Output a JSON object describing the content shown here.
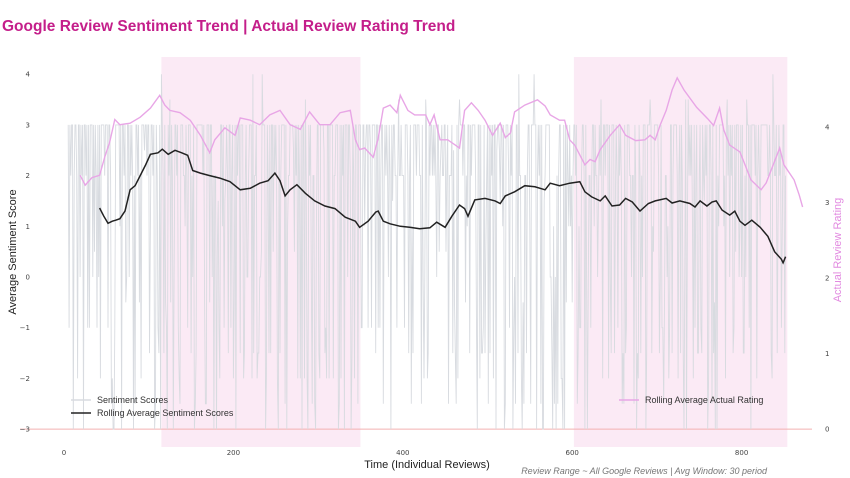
{
  "chart_data": {
    "type": "line",
    "title": "Google Review Sentiment Trend | Actual Review Rating Trend",
    "xlabel": "Time (Individual Reviews)",
    "ylabel": "Average Sentiment Score",
    "ylabel_right": "Actual Review Rating",
    "footnote": "Review Range ~ All Google Reviews | Avg Window: 30 period",
    "xlim": [
      -10,
      854
    ],
    "ylim": [
      -3,
      4
    ],
    "ylim_right": [
      0,
      4
    ],
    "x_ticks": [
      0,
      200,
      400,
      600,
      800
    ],
    "y_ticks": [
      -3,
      -2,
      -1,
      0,
      1,
      2,
      3,
      4
    ],
    "y_ticks_right": [
      0,
      1,
      2,
      3,
      4
    ],
    "grid": false,
    "colors": {
      "title": "#c41e8a",
      "sentiment_raw": "#d8dbe0",
      "rolling_sentiment": "#222222",
      "rolling_rating": "#e8a6e6",
      "shade": "#fbeaf5",
      "baseline": "#f3b0b0"
    },
    "shaded_ranges": [
      [
        115,
        350
      ],
      [
        602,
        854
      ]
    ],
    "baseline_value": -3,
    "legend": {
      "left": {
        "placement": "bottom-left",
        "entries": [
          "Sentiment Scores",
          "Rolling Average Sentiment Scores"
        ]
      },
      "right": {
        "placement": "bottom-right",
        "entries": [
          "Rolling Average Actual Rating"
        ]
      }
    },
    "series": [
      {
        "name": "Sentiment Scores",
        "axis": "left",
        "note": "raw per-review sentiment, values range -3 to 4, mostly 2-3 with frequent negative spikes",
        "x_range": [
          5,
          852
        ],
        "values_sample": [
          1.5,
          4,
          -3,
          3,
          2,
          3,
          -1,
          3,
          2,
          3,
          3,
          -3,
          2,
          3,
          3,
          2,
          -2,
          3,
          3,
          0,
          3,
          2,
          3,
          -3,
          3,
          3,
          2,
          3,
          -1,
          3
        ]
      },
      {
        "name": "Rolling Average Sentiment Scores",
        "axis": "left",
        "points": [
          [
            42,
            1.36
          ],
          [
            47,
            1.2
          ],
          [
            52,
            1.06
          ],
          [
            57,
            1.1
          ],
          [
            61,
            1.12
          ],
          [
            66,
            1.15
          ],
          [
            72,
            1.3
          ],
          [
            78,
            1.72
          ],
          [
            84,
            1.8
          ],
          [
            90,
            2.0
          ],
          [
            96,
            2.2
          ],
          [
            102,
            2.42
          ],
          [
            111,
            2.45
          ],
          [
            116,
            2.52
          ],
          [
            123,
            2.42
          ],
          [
            131,
            2.5
          ],
          [
            139,
            2.45
          ],
          [
            146,
            2.4
          ],
          [
            152,
            2.1
          ],
          [
            161,
            2.05
          ],
          [
            172,
            2.0
          ],
          [
            184,
            1.95
          ],
          [
            196,
            1.88
          ],
          [
            208,
            1.72
          ],
          [
            220,
            1.75
          ],
          [
            231,
            1.85
          ],
          [
            241,
            1.9
          ],
          [
            249,
            2.05
          ],
          [
            255,
            1.9
          ],
          [
            261,
            1.6
          ],
          [
            267,
            1.72
          ],
          [
            275,
            1.82
          ],
          [
            285,
            1.65
          ],
          [
            296,
            1.5
          ],
          [
            308,
            1.4
          ],
          [
            320,
            1.35
          ],
          [
            332,
            1.18
          ],
          [
            344,
            1.1
          ],
          [
            349,
            0.98
          ],
          [
            359,
            1.1
          ],
          [
            368,
            1.28
          ],
          [
            371,
            1.3
          ],
          [
            377,
            1.1
          ],
          [
            385,
            1.05
          ],
          [
            397,
            1.0
          ],
          [
            408,
            0.98
          ],
          [
            420,
            0.95
          ],
          [
            432,
            0.97
          ],
          [
            440,
            1.08
          ],
          [
            450,
            0.98
          ],
          [
            458,
            1.2
          ],
          [
            467,
            1.42
          ],
          [
            473,
            1.35
          ],
          [
            477,
            1.2
          ],
          [
            485,
            1.52
          ],
          [
            497,
            1.55
          ],
          [
            509,
            1.5
          ],
          [
            515,
            1.45
          ],
          [
            521,
            1.6
          ],
          [
            532,
            1.68
          ],
          [
            544,
            1.8
          ],
          [
            556,
            1.78
          ],
          [
            568,
            1.72
          ],
          [
            574,
            1.85
          ],
          [
            585,
            1.8
          ],
          [
            597,
            1.85
          ],
          [
            609,
            1.88
          ],
          [
            615,
            1.68
          ],
          [
            623,
            1.58
          ],
          [
            633,
            1.5
          ],
          [
            639,
            1.6
          ],
          [
            647,
            1.4
          ],
          [
            656,
            1.42
          ],
          [
            663,
            1.55
          ],
          [
            671,
            1.48
          ],
          [
            680,
            1.3
          ],
          [
            690,
            1.45
          ],
          [
            698,
            1.5
          ],
          [
            711,
            1.55
          ],
          [
            718,
            1.46
          ],
          [
            727,
            1.5
          ],
          [
            739,
            1.45
          ],
          [
            745,
            1.38
          ],
          [
            751,
            1.5
          ],
          [
            759,
            1.4
          ],
          [
            765,
            1.48
          ],
          [
            770,
            1.5
          ],
          [
            777,
            1.32
          ],
          [
            786,
            1.22
          ],
          [
            792,
            1.3
          ],
          [
            798,
            1.1
          ],
          [
            804,
            1.02
          ],
          [
            812,
            1.12
          ],
          [
            822,
            0.98
          ],
          [
            831,
            0.8
          ],
          [
            839,
            0.5
          ],
          [
            847,
            0.35
          ],
          [
            849,
            0.28
          ],
          [
            852,
            0.4
          ]
        ]
      },
      {
        "name": "Rolling Average Actual Rating",
        "axis": "right",
        "points": [
          [
            19,
            3.36
          ],
          [
            25,
            3.23
          ],
          [
            33,
            3.33
          ],
          [
            42,
            3.36
          ],
          [
            48,
            3.6
          ],
          [
            54,
            3.8
          ],
          [
            60,
            4.1
          ],
          [
            66,
            4.03
          ],
          [
            78,
            4.05
          ],
          [
            90,
            4.13
          ],
          [
            102,
            4.25
          ],
          [
            113,
            4.42
          ],
          [
            119,
            4.29
          ],
          [
            125,
            4.22
          ],
          [
            137,
            4.19
          ],
          [
            149,
            4.09
          ],
          [
            161,
            3.89
          ],
          [
            172,
            3.66
          ],
          [
            178,
            3.83
          ],
          [
            190,
            3.99
          ],
          [
            202,
            3.89
          ],
          [
            208,
            4.12
          ],
          [
            220,
            4.09
          ],
          [
            231,
            4.03
          ],
          [
            243,
            4.16
          ],
          [
            255,
            4.22
          ],
          [
            267,
            4.03
          ],
          [
            279,
            3.97
          ],
          [
            290,
            4.2
          ],
          [
            302,
            4.03
          ],
          [
            314,
            4.03
          ],
          [
            326,
            4.19
          ],
          [
            338,
            4.22
          ],
          [
            344,
            3.83
          ],
          [
            349,
            3.7
          ],
          [
            355,
            3.72
          ],
          [
            365,
            3.6
          ],
          [
            371,
            3.85
          ],
          [
            377,
            4.25
          ],
          [
            385,
            4.29
          ],
          [
            393,
            4.19
          ],
          [
            397,
            4.42
          ],
          [
            406,
            4.22
          ],
          [
            414,
            4.16
          ],
          [
            427,
            4.16
          ],
          [
            432,
            4.03
          ],
          [
            437,
            4.16
          ],
          [
            444,
            3.83
          ],
          [
            453,
            3.83
          ],
          [
            462,
            3.76
          ],
          [
            467,
            3.72
          ],
          [
            473,
            4.22
          ],
          [
            481,
            4.32
          ],
          [
            489,
            4.22
          ],
          [
            497,
            4.09
          ],
          [
            506,
            3.89
          ],
          [
            515,
            4.05
          ],
          [
            521,
            3.86
          ],
          [
            527,
            3.92
          ],
          [
            532,
            4.2
          ],
          [
            544,
            4.29
          ],
          [
            559,
            4.36
          ],
          [
            568,
            4.28
          ],
          [
            574,
            4.16
          ],
          [
            585,
            4.09
          ],
          [
            591,
            4.09
          ],
          [
            597,
            3.83
          ],
          [
            603,
            3.76
          ],
          [
            609,
            3.63
          ],
          [
            615,
            3.5
          ],
          [
            621,
            3.57
          ],
          [
            627,
            3.54
          ],
          [
            633,
            3.7
          ],
          [
            645,
            3.89
          ],
          [
            656,
            4.03
          ],
          [
            663,
            3.89
          ],
          [
            675,
            3.82
          ],
          [
            686,
            3.83
          ],
          [
            692,
            3.89
          ],
          [
            698,
            3.83
          ],
          [
            704,
            4.03
          ],
          [
            711,
            4.22
          ],
          [
            718,
            4.49
          ],
          [
            724,
            4.65
          ],
          [
            732,
            4.49
          ],
          [
            747,
            4.26
          ],
          [
            760,
            4.11
          ],
          [
            767,
            4.02
          ],
          [
            774,
            4.25
          ],
          [
            779,
            3.96
          ],
          [
            786,
            3.76
          ],
          [
            798,
            3.67
          ],
          [
            804,
            3.5
          ],
          [
            811,
            3.3
          ],
          [
            823,
            3.17
          ],
          [
            829,
            3.26
          ],
          [
            845,
            3.72
          ],
          [
            850,
            3.5
          ],
          [
            862,
            3.3
          ],
          [
            868,
            3.1
          ],
          [
            872,
            2.94
          ]
        ]
      }
    ]
  }
}
